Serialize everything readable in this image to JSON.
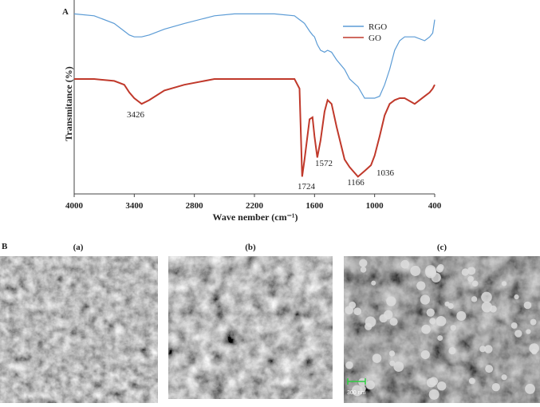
{
  "panel_a_label": "A",
  "chart_data": {
    "type": "line",
    "x_label": "Wave nember (cm⁻¹)",
    "y_label": "Transmitance  (%)",
    "x": [
      4000,
      3800,
      3600,
      3500,
      3450,
      3400,
      3326,
      3250,
      3100,
      2900,
      2600,
      2400,
      2000,
      1800,
      1750,
      1724,
      1700,
      1650,
      1620,
      1600,
      1572,
      1540,
      1500,
      1470,
      1430,
      1380,
      1300,
      1250,
      1166,
      1100,
      1036,
      1000,
      950,
      900,
      850,
      800,
      750,
      700,
      600,
      500,
      450,
      420,
      400
    ],
    "series": [
      {
        "name": "RGO",
        "color": "#5b9bd5",
        "values": [
          94,
          93,
          89,
          85,
          83,
          82,
          82,
          83,
          86,
          89,
          93,
          94,
          94,
          93,
          91,
          90,
          89,
          85,
          83,
          82,
          78,
          75,
          74,
          75,
          74,
          70,
          65,
          60,
          56,
          50,
          50,
          50,
          51,
          57,
          65,
          75,
          80,
          82,
          82,
          80,
          82,
          84,
          91
        ]
      },
      {
        "name": "GO",
        "color": "#c0392b",
        "values": [
          60,
          60,
          59,
          57,
          53,
          50,
          47,
          49,
          54,
          57,
          60,
          60,
          60,
          60,
          55,
          9,
          18,
          39,
          40,
          30,
          19,
          28,
          43,
          49,
          47,
          35,
          18,
          14,
          9,
          12,
          15,
          20,
          30,
          41,
          47,
          49,
          50,
          50,
          47,
          51,
          53,
          55,
          57
        ]
      }
    ],
    "xlim": [
      4000,
      400
    ],
    "xticks": [
      4000,
      3400,
      2800,
      2200,
      1600,
      1000,
      400
    ],
    "ylim": [
      0,
      100
    ],
    "legend": "upper right",
    "annotations": [
      "3426",
      "1724",
      "1572",
      "1166",
      "1036"
    ]
  },
  "panel_b": {
    "label": "B",
    "images": [
      {
        "label": "(a)"
      },
      {
        "label": "(b)"
      },
      {
        "label": "(c)",
        "scale_bar": "300 nm"
      }
    ]
  }
}
